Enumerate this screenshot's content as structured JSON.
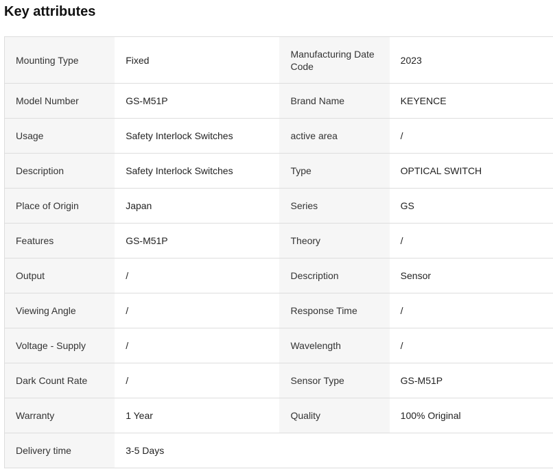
{
  "title": "Key attributes",
  "rows": [
    [
      {
        "k": "Mounting Type",
        "v": "Fixed"
      },
      {
        "k": "Manufacturing Date Code",
        "v": "2023"
      }
    ],
    [
      {
        "k": "Model Number",
        "v": "GS-M51P"
      },
      {
        "k": "Brand Name",
        "v": "KEYENCE"
      }
    ],
    [
      {
        "k": "Usage",
        "v": "Safety Interlock Switches"
      },
      {
        "k": "active area",
        "v": "/"
      }
    ],
    [
      {
        "k": "Description",
        "v": "Safety Interlock Switches"
      },
      {
        "k": "Type",
        "v": "OPTICAL SWITCH"
      }
    ],
    [
      {
        "k": "Place of Origin",
        "v": "Japan"
      },
      {
        "k": "Series",
        "v": "GS"
      }
    ],
    [
      {
        "k": "Features",
        "v": "GS-M51P"
      },
      {
        "k": "Theory",
        "v": "/"
      }
    ],
    [
      {
        "k": "Output",
        "v": "/"
      },
      {
        "k": "Description",
        "v": "Sensor"
      }
    ],
    [
      {
        "k": "Viewing Angle",
        "v": "/"
      },
      {
        "k": "Response Time",
        "v": "/"
      }
    ],
    [
      {
        "k": "Voltage - Supply",
        "v": "/"
      },
      {
        "k": "Wavelength",
        "v": "/"
      }
    ],
    [
      {
        "k": "Dark Count Rate",
        "v": "/"
      },
      {
        "k": "Sensor Type",
        "v": "GS-M51P"
      }
    ],
    [
      {
        "k": "Warranty",
        "v": "1 Year"
      },
      {
        "k": "Quality",
        "v": "100% Original"
      }
    ],
    [
      {
        "k": "Delivery time",
        "v": "3-5 Days"
      }
    ]
  ]
}
